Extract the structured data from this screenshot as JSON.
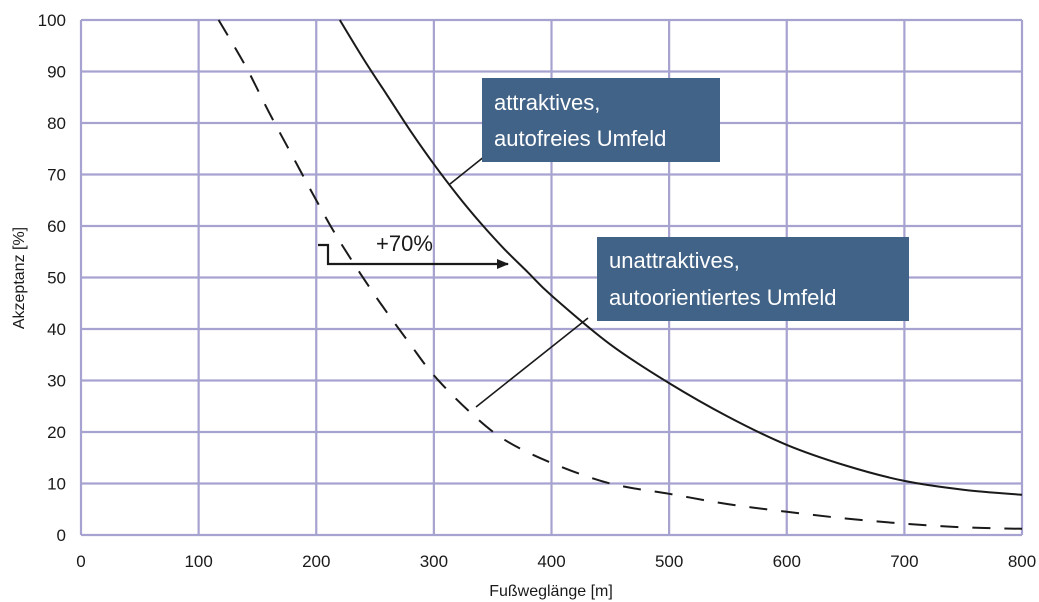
{
  "chart_data": {
    "type": "line",
    "xlabel": "Fußweglänge [m]",
    "ylabel": "Akzeptanz [%]",
    "xlim": [
      0,
      800
    ],
    "ylim": [
      0,
      100
    ],
    "x_ticks": [
      "0",
      "100",
      "200",
      "300",
      "400",
      "500",
      "600",
      "700",
      "800"
    ],
    "y_ticks": [
      "0",
      "10",
      "20",
      "30",
      "40",
      "50",
      "60",
      "70",
      "80",
      "90",
      "100"
    ],
    "grid": true,
    "series": [
      {
        "name": "attraktives, autofreies Umfeld",
        "style": "solid",
        "color": "#1a1a1a",
        "x": [
          220,
          240,
          260,
          280,
          300,
          320,
          340,
          360,
          380,
          400,
          450,
          500,
          550,
          600,
          650,
          700,
          750,
          800
        ],
        "y": [
          100,
          92.5,
          85.5,
          78.5,
          72,
          66,
          60.5,
          55.5,
          51,
          46.5,
          37,
          29.5,
          23,
          17.5,
          13.5,
          10.5,
          8.8,
          7.8
        ]
      },
      {
        "name": "unattraktives, autoorientiertes Umfeld",
        "style": "dashed",
        "color": "#1a1a1a",
        "x": [
          117,
          140,
          160,
          180,
          200,
          220,
          250,
          280,
          300,
          330,
          360,
          400,
          450,
          500,
          550,
          600,
          650,
          700,
          750,
          800
        ],
        "y": [
          100,
          91,
          82,
          73.5,
          65,
          57,
          46.5,
          37,
          31,
          24,
          18.5,
          14,
          10,
          8,
          6,
          4.5,
          3.2,
          2.2,
          1.5,
          1.2
        ]
      }
    ],
    "annotations": [
      {
        "id": "box-attractive",
        "lines": [
          "attraktives,",
          "autofreies Umfeld"
        ],
        "bg": "#416387"
      },
      {
        "id": "box-unattractive",
        "lines": [
          "unattraktives,",
          "autoorientiertes Umfeld"
        ],
        "bg": "#416387"
      },
      {
        "id": "increase",
        "text": "+70%"
      }
    ]
  }
}
